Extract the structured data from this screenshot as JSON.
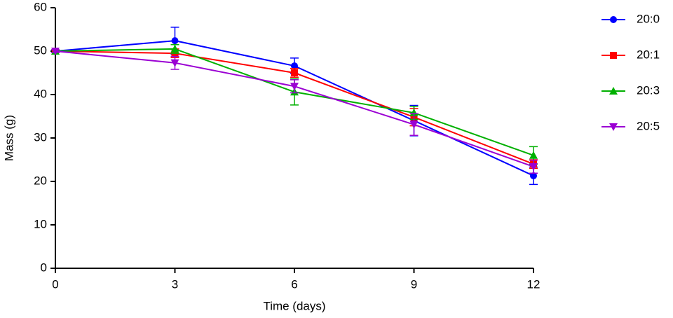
{
  "chart_data": {
    "type": "line",
    "x_label": "Time (days)",
    "y_label": "Mass (g)",
    "x": [
      0,
      3,
      6,
      9,
      12
    ],
    "xlim": [
      0,
      12
    ],
    "xticks": [
      0,
      3,
      6,
      9,
      12
    ],
    "ylim": [
      0,
      60
    ],
    "yticks": [
      0,
      10,
      20,
      30,
      40,
      50,
      60
    ],
    "legend": "right",
    "series": [
      {
        "name": "20:0",
        "color": "#0000ff",
        "marker": "circle",
        "values": [
          50,
          52.4,
          46.6,
          34.0,
          21.3
        ],
        "errors": [
          0.3,
          3.1,
          1.8,
          3.5,
          2.0
        ]
      },
      {
        "name": "20:1",
        "color": "#ff0000",
        "marker": "square",
        "values": [
          50,
          49.5,
          45.0,
          34.8,
          24.0
        ],
        "errors": [
          0.3,
          1.0,
          1.0,
          2.0,
          1.0
        ]
      },
      {
        "name": "20:3",
        "color": "#00b000",
        "marker": "triangle",
        "values": [
          50,
          50.5,
          40.6,
          35.8,
          26.0
        ],
        "errors": [
          0.3,
          1.0,
          3.0,
          1.5,
          2.0
        ]
      },
      {
        "name": "20:5",
        "color": "#9b00d3",
        "marker": "triangle-down",
        "values": [
          50,
          47.3,
          41.9,
          33.1,
          23.4
        ],
        "errors": [
          0.3,
          1.5,
          1.5,
          2.5,
          1.5
        ]
      }
    ]
  }
}
